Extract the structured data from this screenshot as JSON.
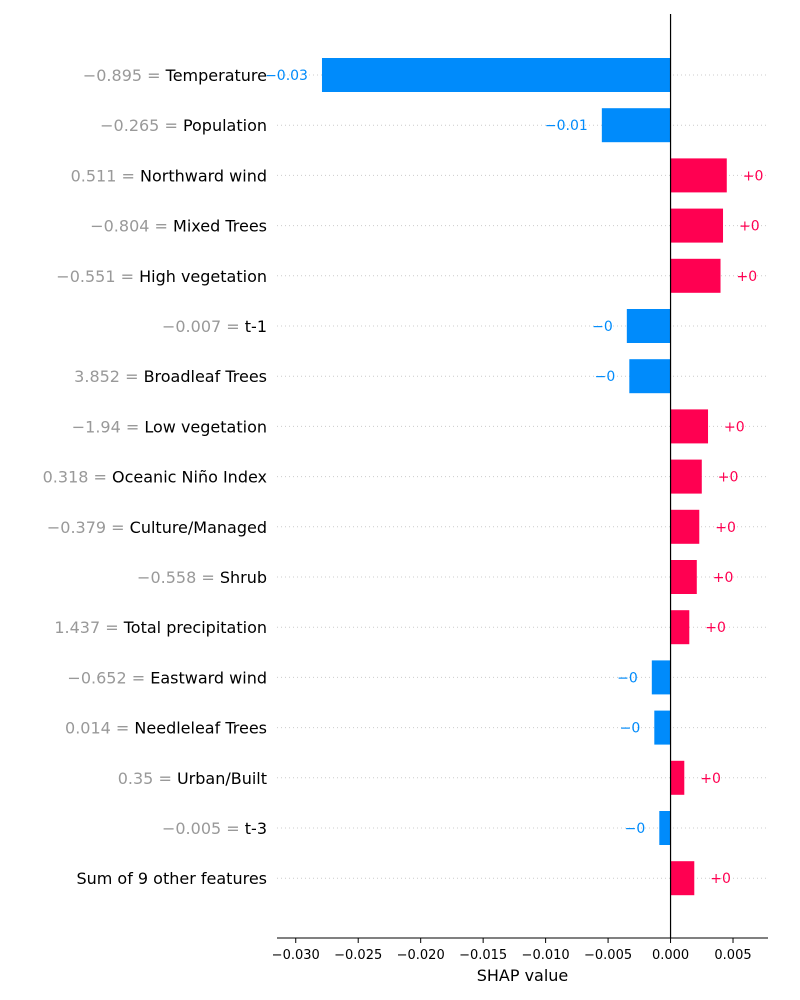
{
  "chart_data": {
    "type": "bar",
    "orientation": "horizontal",
    "xlabel": "SHAP value",
    "xlim": [
      -0.0315,
      0.0078
    ],
    "xticks": [
      -0.03,
      -0.025,
      -0.02,
      -0.015,
      -0.01,
      -0.005,
      0.0,
      0.005
    ],
    "xtick_labels": [
      "−0.030",
      "−0.025",
      "−0.020",
      "−0.015",
      "−0.010",
      "−0.005",
      "0.000",
      "0.005"
    ],
    "grid": "dotted horizontal row guides",
    "colors": {
      "positive": "#ff0051",
      "negative": "#008bfb",
      "feature_value": "#999999",
      "feature_name": "#000000"
    },
    "features": [
      {
        "value_text": "−0.895 = ",
        "name": "Temperature",
        "shap": -0.0279,
        "label": "−0.03"
      },
      {
        "value_text": "−0.265 = ",
        "name": "Population",
        "shap": -0.0055,
        "label": "−0.01"
      },
      {
        "value_text": "0.511 = ",
        "name": "Northward wind",
        "shap": 0.0045,
        "label": "+0"
      },
      {
        "value_text": "−0.804 = ",
        "name": "Mixed Trees",
        "shap": 0.0042,
        "label": "+0"
      },
      {
        "value_text": "−0.551 = ",
        "name": "High vegetation",
        "shap": 0.004,
        "label": "+0"
      },
      {
        "value_text": "−0.007 = ",
        "name": "t-1",
        "shap": -0.0035,
        "label": "−0"
      },
      {
        "value_text": "3.852 = ",
        "name": "Broadleaf Trees",
        "shap": -0.0033,
        "label": "−0"
      },
      {
        "value_text": "−1.94 = ",
        "name": "Low vegetation",
        "shap": 0.003,
        "label": "+0"
      },
      {
        "value_text": "0.318 = ",
        "name": "Oceanic Niño Index",
        "shap": 0.0025,
        "label": "+0"
      },
      {
        "value_text": "−0.379 = ",
        "name": "Culture/Managed",
        "shap": 0.0023,
        "label": "+0"
      },
      {
        "value_text": "−0.558 = ",
        "name": "Shrub",
        "shap": 0.0021,
        "label": "+0"
      },
      {
        "value_text": "1.437 = ",
        "name": "Total precipitation",
        "shap": 0.0015,
        "label": "+0"
      },
      {
        "value_text": "−0.652 = ",
        "name": "Eastward wind",
        "shap": -0.0015,
        "label": "−0"
      },
      {
        "value_text": "0.014 = ",
        "name": "Needleleaf Trees",
        "shap": -0.0013,
        "label": "−0"
      },
      {
        "value_text": "0.35 = ",
        "name": "Urban/Built",
        "shap": 0.0011,
        "label": "+0"
      },
      {
        "value_text": "−0.005 = ",
        "name": "t-3",
        "shap": -0.0009,
        "label": "−0"
      },
      {
        "value_text": "",
        "name": "Sum of 9 other features",
        "shap": 0.0019,
        "label": "+0"
      }
    ]
  }
}
